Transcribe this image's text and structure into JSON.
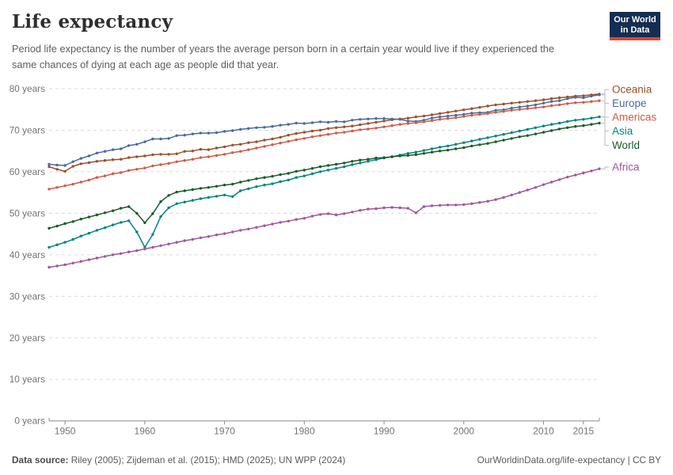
{
  "header": {
    "title": "Life expectancy",
    "subtitle": "Period life expectancy is the number of years the average person born in a certain year would live if they experienced the same chances of dying at each age as people did that year.",
    "logo": {
      "line1": "Our World",
      "line2": "in Data",
      "bg_color": "#142e52",
      "accent_color": "#e0442f"
    }
  },
  "footer": {
    "source_label": "Data source:",
    "source_text": " Riley (2005); Zijdeman et al. (2015); HMD (2025); UN WPP (2024)",
    "right_text": "OurWorldinData.org/life-expectancy | CC BY"
  },
  "chart_data": {
    "type": "line",
    "title": "Life expectancy",
    "xlabel": "",
    "ylabel": "",
    "grid": "horizontal-dashed",
    "legend_position": "right",
    "xlim": [
      1948,
      2017
    ],
    "ylim": [
      0,
      80
    ],
    "x_ticks": [
      1950,
      1960,
      1970,
      1980,
      1990,
      2000,
      2010,
      2015
    ],
    "y_ticks": [
      0,
      10,
      20,
      30,
      40,
      50,
      60,
      70,
      80
    ],
    "y_tick_suffix": " years",
    "x": [
      1948,
      1949,
      1950,
      1951,
      1952,
      1953,
      1954,
      1955,
      1956,
      1957,
      1958,
      1959,
      1960,
      1961,
      1962,
      1963,
      1964,
      1965,
      1966,
      1967,
      1968,
      1969,
      1970,
      1971,
      1972,
      1973,
      1974,
      1975,
      1976,
      1977,
      1978,
      1979,
      1980,
      1981,
      1982,
      1983,
      1984,
      1985,
      1986,
      1987,
      1988,
      1989,
      1990,
      1991,
      1992,
      1993,
      1994,
      1995,
      1996,
      1997,
      1998,
      1999,
      2000,
      2001,
      2002,
      2003,
      2004,
      2005,
      2006,
      2007,
      2008,
      2009,
      2010,
      2011,
      2012,
      2013,
      2014,
      2015,
      2016,
      2017
    ],
    "series": [
      {
        "name": "Oceania",
        "color": "#9A5129",
        "values": [
          61.2,
          60.6,
          60.1,
          61.3,
          61.9,
          62.2,
          62.5,
          62.7,
          62.9,
          63.0,
          63.4,
          63.6,
          63.8,
          64.1,
          64.2,
          64.2,
          64.3,
          64.9,
          65.0,
          65.4,
          65.3,
          65.7,
          66.0,
          66.4,
          66.6,
          67.0,
          67.2,
          67.6,
          67.9,
          68.3,
          68.8,
          69.2,
          69.5,
          69.8,
          70.0,
          70.4,
          70.6,
          70.8,
          71.0,
          71.3,
          71.6,
          71.9,
          72.2,
          72.5,
          72.7,
          72.9,
          73.2,
          73.4,
          73.7,
          74.0,
          74.3,
          74.6,
          74.9,
          75.2,
          75.5,
          75.8,
          76.1,
          76.3,
          76.5,
          76.7,
          76.9,
          77.1,
          77.3,
          77.6,
          77.8,
          78.0,
          78.2,
          78.3,
          78.5,
          78.7
        ]
      },
      {
        "name": "Europe",
        "color": "#4C6A9C",
        "values": [
          61.8,
          61.6,
          61.5,
          62.4,
          63.2,
          63.8,
          64.5,
          64.9,
          65.3,
          65.5,
          66.3,
          66.6,
          67.2,
          67.9,
          67.9,
          68.0,
          68.7,
          68.8,
          69.1,
          69.3,
          69.3,
          69.4,
          69.7,
          69.9,
          70.2,
          70.4,
          70.6,
          70.7,
          70.9,
          71.2,
          71.4,
          71.7,
          71.6,
          71.8,
          72.0,
          71.9,
          72.1,
          72.0,
          72.4,
          72.6,
          72.7,
          72.8,
          72.8,
          72.7,
          72.6,
          72.2,
          72.1,
          72.4,
          72.9,
          73.2,
          73.4,
          73.6,
          73.8,
          74.1,
          74.2,
          74.3,
          74.8,
          74.9,
          75.3,
          75.6,
          75.8,
          76.1,
          76.5,
          76.9,
          77.1,
          77.6,
          77.9,
          77.8,
          78.2,
          78.5
        ]
      },
      {
        "name": "Americas",
        "color": "#CF5A46",
        "values": [
          55.8,
          56.2,
          56.6,
          57.0,
          57.5,
          58.0,
          58.6,
          59.0,
          59.5,
          59.8,
          60.3,
          60.6,
          60.9,
          61.4,
          61.7,
          62.0,
          62.4,
          62.7,
          63.0,
          63.4,
          63.6,
          63.9,
          64.2,
          64.6,
          64.9,
          65.3,
          65.7,
          66.1,
          66.5,
          66.9,
          67.3,
          67.7,
          68.0,
          68.4,
          68.7,
          69.0,
          69.3,
          69.5,
          69.8,
          70.1,
          70.3,
          70.5,
          70.8,
          71.1,
          71.4,
          71.6,
          71.8,
          72.0,
          72.3,
          72.6,
          72.8,
          73.0,
          73.3,
          73.6,
          73.8,
          74.0,
          74.3,
          74.5,
          74.8,
          75.0,
          75.2,
          75.4,
          75.6,
          75.9,
          76.1,
          76.4,
          76.6,
          76.7,
          76.9,
          77.1
        ]
      },
      {
        "name": "Asia",
        "color": "#00847E",
        "values": [
          41.8,
          42.4,
          43.0,
          43.7,
          44.5,
          45.2,
          45.9,
          46.5,
          47.2,
          47.8,
          48.2,
          45.5,
          41.8,
          44.9,
          49.2,
          51.3,
          52.3,
          52.7,
          53.1,
          53.5,
          53.8,
          54.1,
          54.4,
          54.0,
          55.4,
          55.9,
          56.4,
          56.8,
          57.1,
          57.6,
          58.0,
          58.6,
          59.0,
          59.5,
          60.0,
          60.4,
          60.8,
          61.2,
          61.7,
          62.1,
          62.5,
          62.9,
          63.3,
          63.6,
          64.0,
          64.4,
          64.7,
          65.1,
          65.5,
          65.9,
          66.2,
          66.6,
          67.0,
          67.4,
          67.8,
          68.2,
          68.6,
          69.0,
          69.4,
          69.8,
          70.2,
          70.6,
          71.0,
          71.4,
          71.7,
          72.1,
          72.4,
          72.6,
          72.9,
          73.2
        ]
      },
      {
        "name": "World",
        "color": "#1A5C26",
        "values": [
          46.4,
          46.9,
          47.5,
          48.0,
          48.6,
          49.1,
          49.6,
          50.1,
          50.6,
          51.2,
          51.6,
          50.0,
          47.7,
          49.9,
          52.8,
          54.3,
          55.1,
          55.4,
          55.7,
          56.0,
          56.2,
          56.5,
          56.8,
          57.0,
          57.5,
          57.9,
          58.3,
          58.6,
          58.9,
          59.3,
          59.6,
          60.1,
          60.4,
          60.8,
          61.2,
          61.5,
          61.8,
          62.1,
          62.5,
          62.8,
          63.0,
          63.3,
          63.4,
          63.6,
          63.8,
          63.9,
          64.1,
          64.4,
          64.7,
          65.0,
          65.2,
          65.5,
          65.8,
          66.2,
          66.5,
          66.8,
          67.2,
          67.6,
          68.0,
          68.4,
          68.7,
          69.1,
          69.5,
          69.9,
          70.3,
          70.6,
          70.9,
          71.1,
          71.4,
          71.7
        ]
      },
      {
        "name": "Africa",
        "color": "#A2559C",
        "values": [
          37.0,
          37.3,
          37.6,
          38.0,
          38.4,
          38.8,
          39.2,
          39.6,
          40.0,
          40.3,
          40.7,
          41.0,
          41.4,
          41.8,
          42.2,
          42.6,
          43.0,
          43.4,
          43.7,
          44.1,
          44.4,
          44.8,
          45.1,
          45.5,
          45.9,
          46.2,
          46.6,
          47.0,
          47.4,
          47.8,
          48.1,
          48.5,
          48.8,
          49.3,
          49.7,
          49.9,
          49.6,
          49.9,
          50.3,
          50.7,
          51.0,
          51.1,
          51.3,
          51.4,
          51.3,
          51.2,
          50.1,
          51.6,
          51.8,
          51.9,
          52.0,
          52.0,
          52.1,
          52.3,
          52.6,
          52.9,
          53.3,
          53.8,
          54.4,
          55.0,
          55.6,
          56.2,
          56.9,
          57.5,
          58.1,
          58.7,
          59.2,
          59.7,
          60.2,
          60.7
        ]
      }
    ]
  }
}
